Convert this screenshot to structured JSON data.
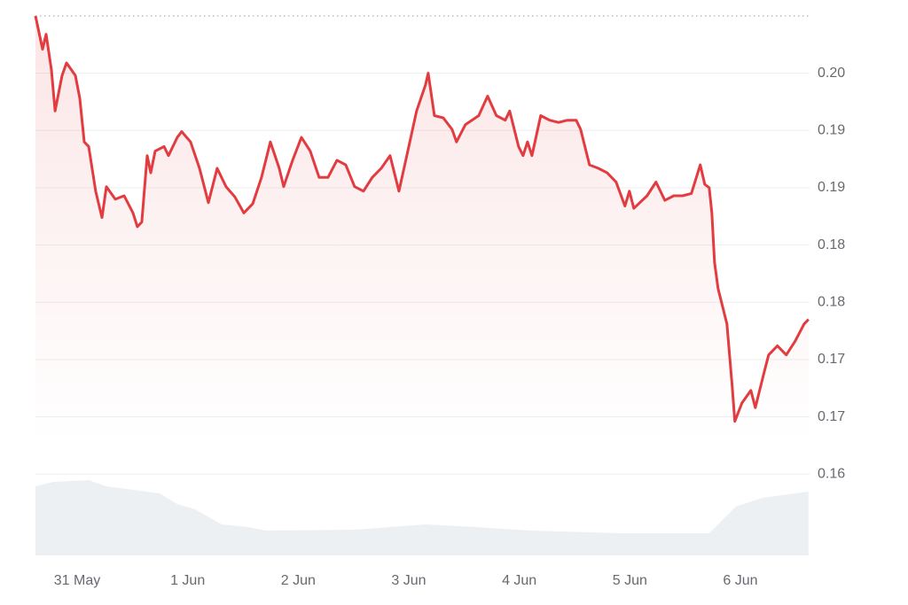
{
  "chart_data": {
    "type": "line",
    "color": "#e23b40",
    "grid": true,
    "x": [
      -0.377,
      -0.313,
      -0.281,
      -0.233,
      -0.2,
      -0.136,
      -0.096,
      -0.016,
      0.024,
      0.064,
      0.104,
      0.168,
      0.225,
      0.265,
      0.345,
      0.425,
      0.505,
      0.545,
      0.585,
      0.634,
      0.666,
      0.706,
      0.786,
      0.826,
      0.906,
      0.946,
      1.026,
      1.107,
      1.187,
      1.267,
      1.347,
      1.427,
      1.508,
      1.588,
      1.668,
      1.748,
      1.828,
      1.868,
      1.949,
      2.029,
      2.109,
      2.189,
      2.269,
      2.35,
      2.43,
      2.51,
      2.59,
      2.67,
      2.751,
      2.831,
      2.911,
      2.991,
      3.071,
      3.152,
      3.176,
      3.232,
      3.312,
      3.392,
      3.432,
      3.512,
      3.633,
      3.713,
      3.793,
      3.873,
      3.913,
      3.993,
      4.034,
      4.074,
      4.114,
      4.194,
      4.274,
      4.354,
      4.435,
      4.515,
      4.555,
      4.635,
      4.715,
      4.795,
      4.876,
      4.956,
      4.996,
      5.036,
      5.156,
      5.237,
      5.317,
      5.397,
      5.477,
      5.557,
      5.637,
      5.678,
      5.718,
      5.742,
      5.766,
      5.798,
      5.878,
      5.926,
      5.95,
      6.014,
      6.095,
      6.135,
      6.215,
      6.255,
      6.335,
      6.415,
      6.495,
      6.576,
      6.616
    ],
    "values": [
      0.2,
      0.1971,
      0.1984,
      0.1953,
      0.1917,
      0.1948,
      0.1959,
      0.1948,
      0.1928,
      0.189,
      0.1886,
      0.1847,
      0.1824,
      0.1851,
      0.184,
      0.1843,
      0.1828,
      0.1816,
      0.182,
      0.1878,
      0.1863,
      0.1882,
      0.1886,
      0.1878,
      0.1894,
      0.1899,
      0.189,
      0.1867,
      0.1837,
      0.1867,
      0.1851,
      0.1842,
      0.1828,
      0.1836,
      0.1859,
      0.189,
      0.1867,
      0.1851,
      0.1874,
      0.1894,
      0.1882,
      0.1859,
      0.1859,
      0.1874,
      0.187,
      0.1851,
      0.1847,
      0.1859,
      0.1867,
      0.1878,
      0.1847,
      0.1882,
      0.1917,
      0.194,
      0.195,
      0.1913,
      0.1911,
      0.1901,
      0.189,
      0.1905,
      0.1913,
      0.193,
      0.1913,
      0.1909,
      0.1917,
      0.1886,
      0.1878,
      0.189,
      0.1878,
      0.1913,
      0.1909,
      0.1907,
      0.1909,
      0.1909,
      0.1901,
      0.187,
      0.1867,
      0.1863,
      0.1855,
      0.1834,
      0.1847,
      0.1832,
      0.1843,
      0.1855,
      0.1839,
      0.1843,
      0.1843,
      0.1845,
      0.187,
      0.1853,
      0.185,
      0.1828,
      0.1785,
      0.1762,
      0.1731,
      0.1677,
      0.1646,
      0.1662,
      0.1673,
      0.1658,
      0.1689,
      0.1704,
      0.1712,
      0.1704,
      0.1716,
      0.1731,
      0.1735
    ],
    "volume": {
      "color": "#edf0f3",
      "x": [
        -0.377,
        -0.217,
        0.104,
        0.265,
        0.746,
        0.906,
        1.067,
        1.307,
        1.548,
        1.708,
        2.51,
        3.152,
        3.472,
        4.114,
        4.916,
        5.718,
        5.958,
        6.199,
        6.616
      ],
      "values": [
        78,
        83,
        85,
        78,
        70,
        58,
        52,
        35,
        32,
        28,
        29,
        35,
        33,
        28,
        25,
        25,
        55,
        65,
        72
      ]
    },
    "xlim": [
      -0.377,
      6.626
    ],
    "ylim": [
      0.1529,
      0.2
    ],
    "xticks": [
      {
        "value": 0,
        "label": "31 May"
      },
      {
        "value": 1,
        "label": "1 Jun"
      },
      {
        "value": 2,
        "label": "2 Jun"
      },
      {
        "value": 3,
        "label": "3 Jun"
      },
      {
        "value": 4,
        "label": "4 Jun"
      },
      {
        "value": 5,
        "label": "5 Jun"
      },
      {
        "value": 6,
        "label": "6 Jun"
      }
    ],
    "yticks": [
      0.16,
      {
        "value": 0.165,
        "label": "0.17"
      },
      0.17,
      {
        "value": 0.175,
        "label": "0.18"
      },
      0.18,
      {
        "value": 0.185,
        "label": "0.19"
      },
      0.19,
      {
        "value": 0.195,
        "label": "0.20"
      }
    ]
  }
}
